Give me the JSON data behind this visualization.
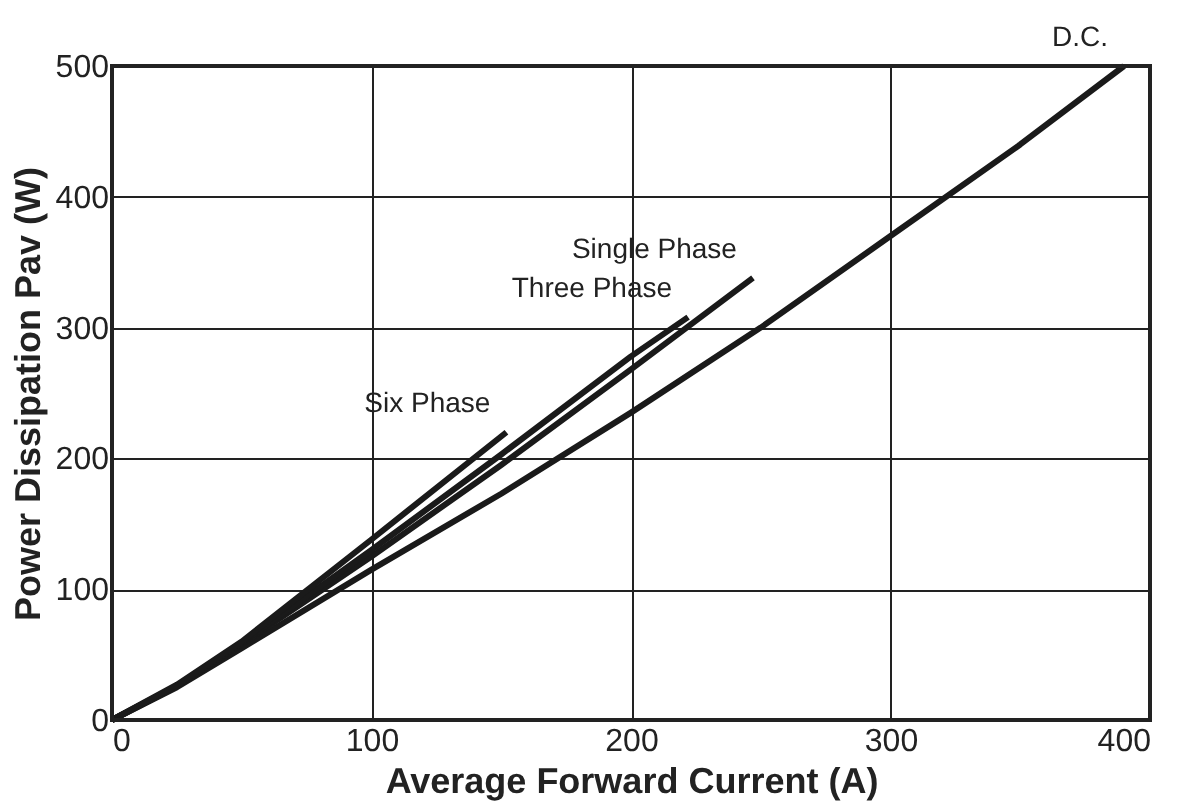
{
  "chart_data": {
    "type": "line",
    "xlabel": "Average Forward Current (A)",
    "ylabel": "Power Dissipation Pav (W)",
    "xlim": [
      0,
      400
    ],
    "ylim": [
      0,
      500
    ],
    "xticks": [
      0,
      100,
      200,
      300,
      400
    ],
    "yticks": [
      0,
      100,
      200,
      300,
      400,
      500
    ],
    "grid": true,
    "legend": false,
    "marker": "none",
    "line_style": "solid",
    "series": [
      {
        "name": "D.C.",
        "color": "#1a1a1a",
        "x": [
          0,
          25,
          50,
          100,
          150,
          200,
          250,
          300,
          350,
          390
        ],
        "values": [
          0,
          25,
          55,
          115,
          173,
          235,
          300,
          370,
          440,
          500
        ]
      },
      {
        "name": "Single Phase",
        "color": "#1a1a1a",
        "x": [
          0,
          25,
          50,
          100,
          150,
          200,
          247
        ],
        "values": [
          0,
          26,
          58,
          125,
          195,
          268,
          338
        ]
      },
      {
        "name": "Three Phase",
        "color": "#1a1a1a",
        "x": [
          0,
          25,
          50,
          100,
          150,
          200,
          222
        ],
        "values": [
          0,
          26,
          59,
          130,
          203,
          278,
          308
        ]
      },
      {
        "name": "Six Phase",
        "color": "#1a1a1a",
        "x": [
          0,
          25,
          50,
          100,
          152
        ],
        "values": [
          0,
          27,
          60,
          138,
          220
        ]
      }
    ]
  }
}
